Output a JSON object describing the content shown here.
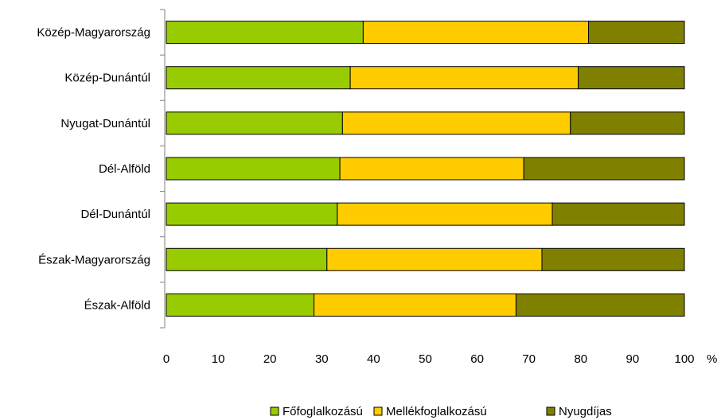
{
  "chart_data": {
    "type": "bar",
    "orientation": "horizontal",
    "stacked": true,
    "categories": [
      "Közép-Magyarország",
      "Közép-Dunántúl",
      "Nyugat-Dunántúl",
      "Dél-Alföld",
      "Dél-Dunántúl",
      "Észak-Magyarország",
      "Észak-Alföld"
    ],
    "series": [
      {
        "name": "Főfoglalkozású",
        "color": "#99cc00",
        "values": [
          38,
          35.5,
          34,
          33.5,
          33,
          31,
          28.5
        ]
      },
      {
        "name": "Mellékfoglalkozású",
        "color": "#ffcc00",
        "values": [
          43.5,
          44,
          44,
          35.5,
          41.5,
          41.5,
          39
        ]
      },
      {
        "name": "Nyugdíjas",
        "color": "#808000",
        "values": [
          18.5,
          20.5,
          22,
          31,
          25.5,
          27.5,
          32.5
        ]
      }
    ],
    "xticks": [
      "0",
      "10",
      "20",
      "30",
      "40",
      "50",
      "60",
      "70",
      "80",
      "90",
      "100"
    ],
    "xlim": [
      0,
      100
    ],
    "xunit": "%",
    "grid": false,
    "legend": "bottom"
  }
}
